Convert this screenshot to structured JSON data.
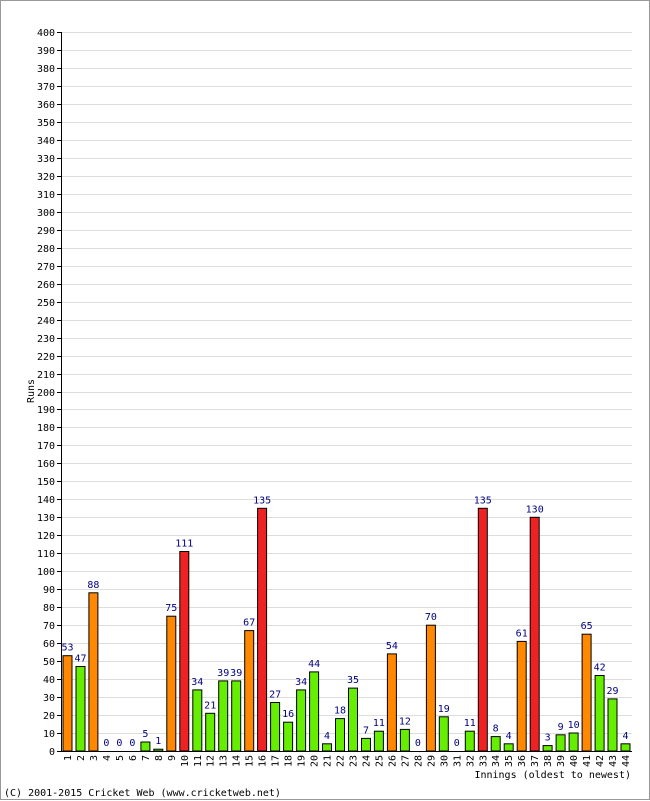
{
  "chart_data": {
    "type": "bar",
    "xlabel": "Innings (oldest to newest)",
    "ylabel": "Runs",
    "ylim": [
      0,
      400
    ],
    "ytick_step": 10,
    "grid": true,
    "categories": [
      "1",
      "2",
      "3",
      "4",
      "5",
      "6",
      "7",
      "8",
      "9",
      "10",
      "11",
      "12",
      "13",
      "14",
      "15",
      "16",
      "17",
      "18",
      "19",
      "20",
      "21",
      "22",
      "23",
      "24",
      "25",
      "26",
      "27",
      "28",
      "29",
      "30",
      "31",
      "32",
      "33",
      "34",
      "35",
      "36",
      "37",
      "38",
      "39",
      "40",
      "41",
      "42",
      "43",
      "44"
    ],
    "values": [
      53,
      47,
      88,
      0,
      0,
      0,
      5,
      1,
      75,
      111,
      34,
      21,
      39,
      39,
      67,
      135,
      27,
      16,
      34,
      44,
      4,
      18,
      35,
      7,
      11,
      54,
      12,
      0,
      70,
      19,
      0,
      11,
      135,
      8,
      4,
      61,
      130,
      3,
      9,
      10,
      65,
      42,
      29,
      4
    ],
    "data_labels": [
      "53",
      "47",
      "88",
      "0",
      "0",
      "0",
      "5",
      "1",
      "75",
      "111",
      "34",
      "21",
      "39",
      "39",
      "67",
      "135",
      "27",
      "16",
      "34",
      "44",
      "4",
      "18",
      "35",
      "7",
      "11",
      "54",
      "12",
      "0",
      "70",
      "19",
      "0",
      "11",
      "135",
      "8",
      "4",
      "61",
      "130",
      "3",
      "9",
      "10",
      "65",
      "42",
      "29",
      "4"
    ],
    "colors": {
      "under_50": "#66ee00",
      "fifty": "#ff8800",
      "hundred": "#ee2222",
      "bar_outline": "#000000",
      "grid": "#dddddd",
      "label": "#000080"
    }
  },
  "footer": {
    "copyright": "(C) 2001-2015 Cricket Web (www.cricketweb.net)"
  }
}
